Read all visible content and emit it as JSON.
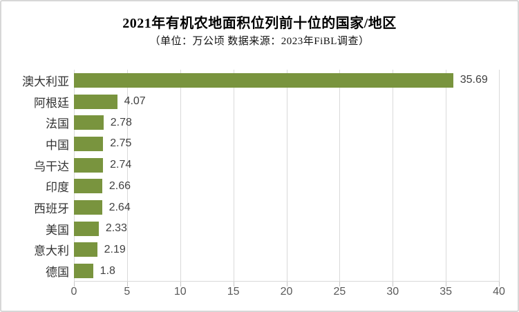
{
  "title": "2021年有机农地面积位列前十位的国家/地区",
  "subtitle": "（单位：万公顷 数据来源：2023年FiBL调查）",
  "colors": {
    "bar": "#79943e",
    "gridline": "#d9d9d9",
    "tick": "#c6c6c6",
    "axis_text": "#595959",
    "value_text": "#404040",
    "category_text": "#333333",
    "border": "#d7d7d7"
  },
  "chart_data": {
    "type": "bar",
    "orientation": "horizontal",
    "title": "2021年有机农地面积位列前十位的国家/地区",
    "subtitle": "（单位：万公顷 数据来源：2023年FiBL调查）",
    "categories": [
      "澳大利亚",
      "阿根廷",
      "法国",
      "中国",
      "乌干达",
      "印度",
      "西班牙",
      "美国",
      "意大利",
      "德国"
    ],
    "values": [
      35.69,
      4.07,
      2.78,
      2.75,
      2.74,
      2.66,
      2.64,
      2.33,
      2.19,
      1.8
    ],
    "value_labels": [
      "35.69",
      "4.07",
      "2.78",
      "2.75",
      "2.74",
      "2.66",
      "2.64",
      "2.33",
      "2.19",
      "1.8"
    ],
    "xlabel": "",
    "ylabel": "",
    "xlim": [
      0,
      40
    ],
    "x_ticks": [
      0,
      5,
      10,
      15,
      20,
      25,
      30,
      35,
      40
    ],
    "grid": true,
    "legend": false
  }
}
